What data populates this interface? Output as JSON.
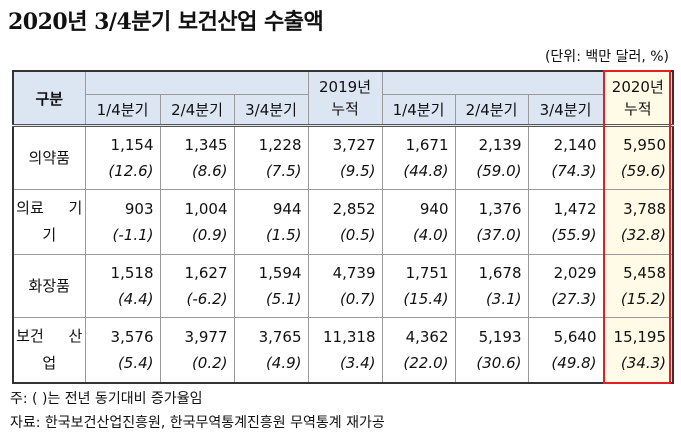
{
  "title": "2020년 3/4분기 보건산업 수출액",
  "unit": "(단위: 백만 달러, %)",
  "table": {
    "corner": "구분",
    "columns": [
      "1/4분기",
      "2/4분기",
      "3/4분기",
      "2019년 누적",
      "1/4분기",
      "2/4분기",
      "3/4분기",
      "2020년 누적"
    ],
    "rows": [
      {
        "label": "의약품",
        "values": [
          "1,154",
          "1,345",
          "1,228",
          "3,727",
          "1,671",
          "2,139",
          "2,140",
          "5,950"
        ],
        "changes": [
          "(12.6)",
          "(8.6)",
          "(7.5)",
          "(9.5)",
          "(44.8)",
          "(59.0)",
          "(74.3)",
          "(59.6)"
        ]
      },
      {
        "label": "의료 기기",
        "values": [
          "903",
          "1,004",
          "944",
          "2,852",
          "940",
          "1,376",
          "1,472",
          "3,788"
        ],
        "changes": [
          "(-1.1)",
          "(0.9)",
          "(1.5)",
          "(0.5)",
          "(4.0)",
          "(37.0)",
          "(55.9)",
          "(32.8)"
        ]
      },
      {
        "label": "화장품",
        "values": [
          "1,518",
          "1,627",
          "1,594",
          "4,739",
          "1,751",
          "1,678",
          "2,029",
          "5,458"
        ],
        "changes": [
          "(4.4)",
          "(-6.2)",
          "(5.1)",
          "(0.7)",
          "(15.4)",
          "(3.1)",
          "(27.3)",
          "(15.2)"
        ]
      },
      {
        "label": "보건 산업",
        "values": [
          "3,576",
          "3,977",
          "3,765",
          "11,318",
          "4,362",
          "5,193",
          "5,640",
          "15,195"
        ],
        "changes": [
          "(5.4)",
          "(0.2)",
          "(4.9)",
          "(3.4)",
          "(22.0)",
          "(30.6)",
          "(49.8)",
          "(34.3)"
        ]
      }
    ]
  },
  "notes": [
    "주: ( )는 전년 동기대비 증가율임",
    "자료: 한국보건산업진흥원, 한국무역통계진흥원 무역통계 재가공"
  ],
  "colors": {
    "header_bg": "#dce6f2",
    "highlight_border": "#e31e24",
    "highlight_bg": "#fffbe6"
  }
}
